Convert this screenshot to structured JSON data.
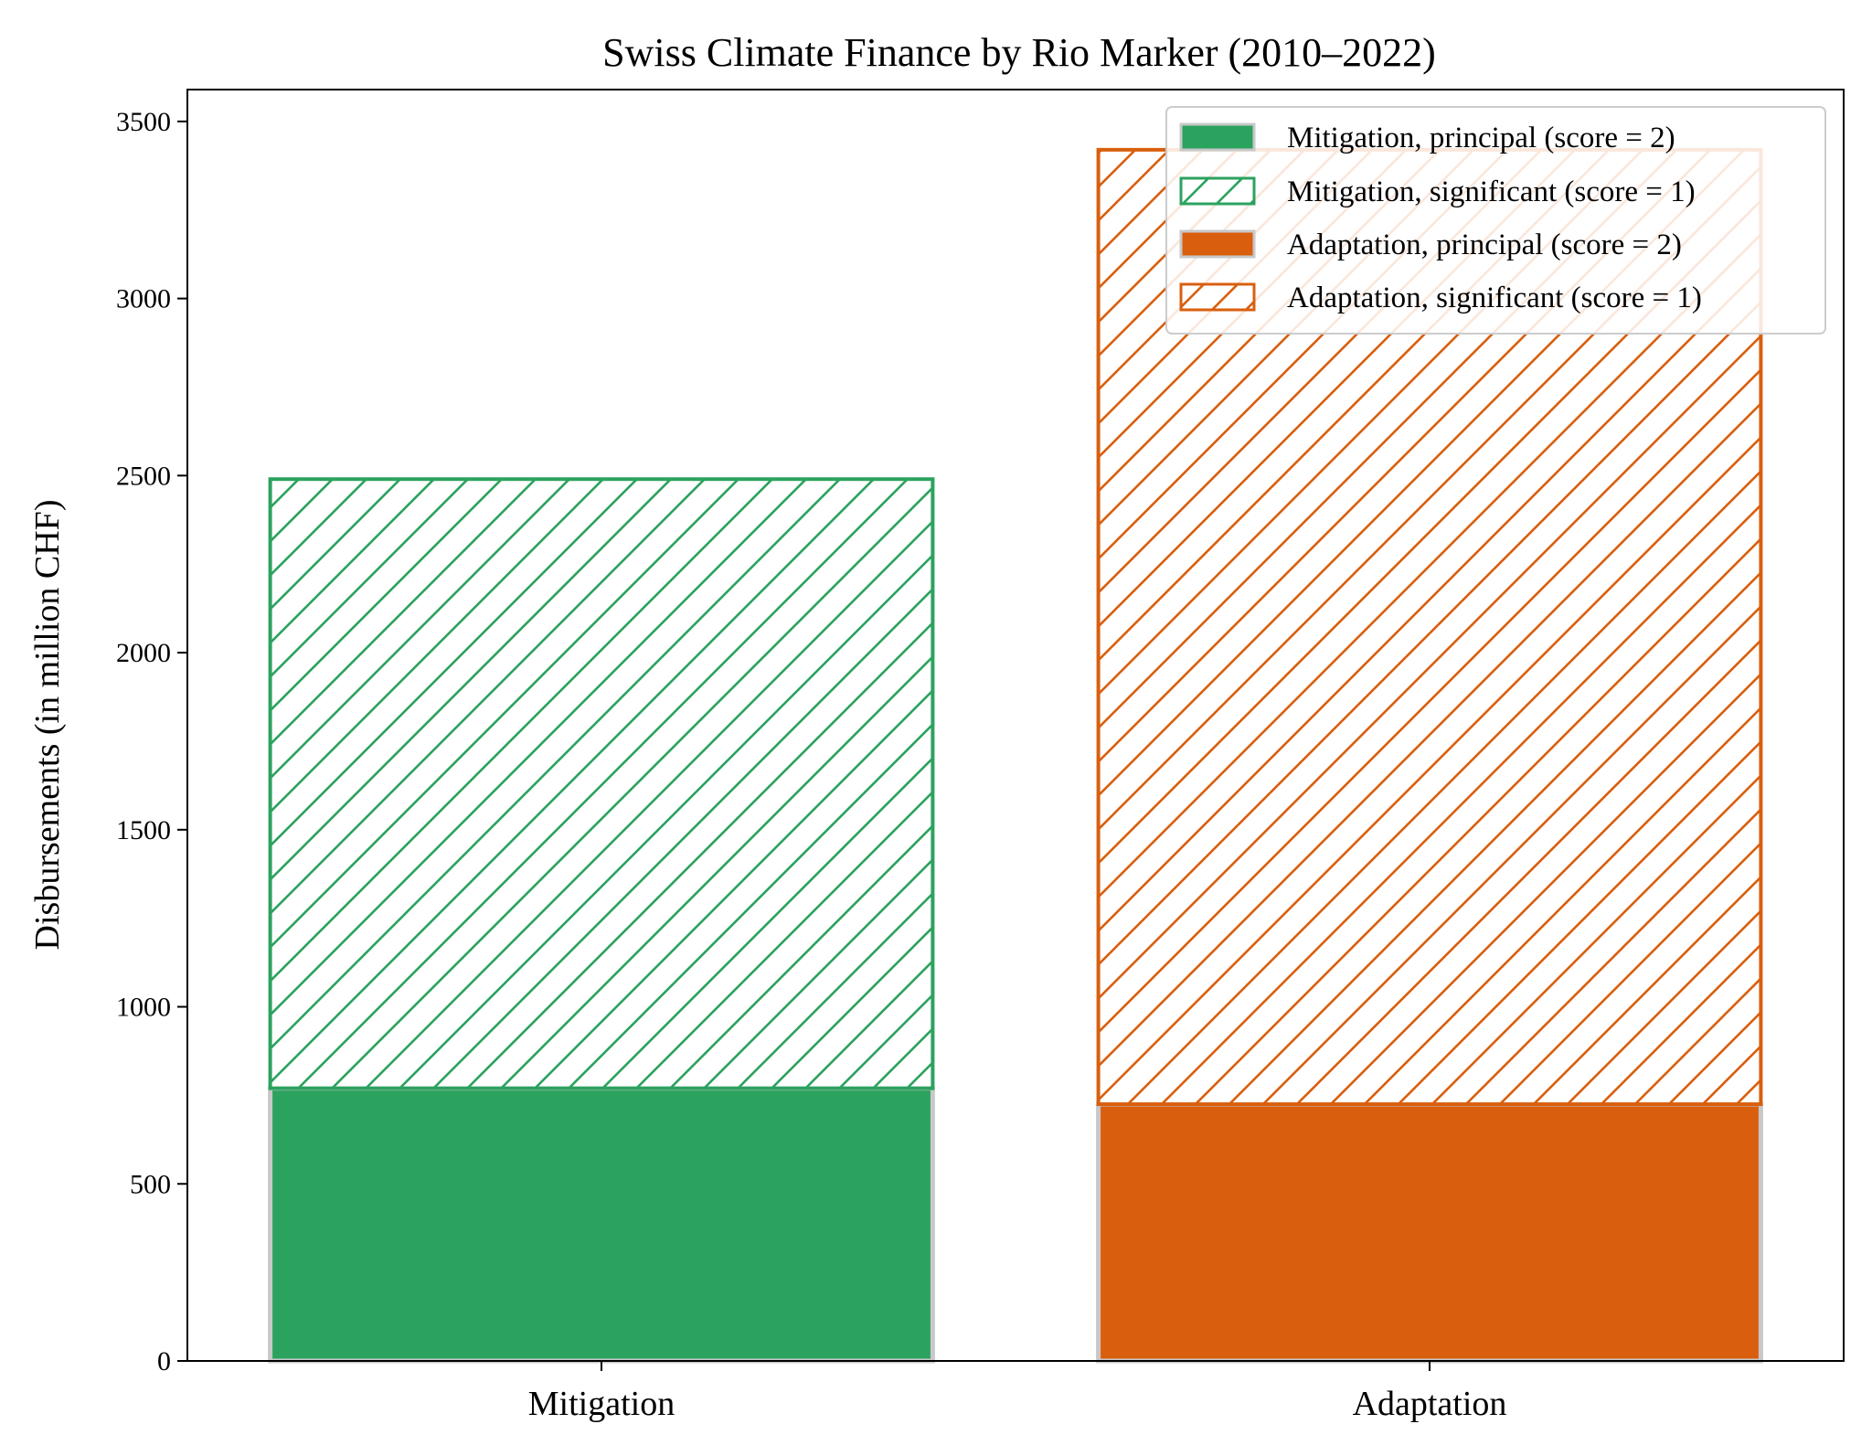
{
  "chart_data": {
    "type": "bar",
    "stacked": true,
    "title": "Swiss Climate Finance by Rio Marker (2010–2022)",
    "xlabel": "",
    "ylabel": "Disbursements (in million CHF)",
    "categories": [
      "Mitigation",
      "Adaptation"
    ],
    "ylim": [
      0,
      3590
    ],
    "yticks": [
      0,
      500,
      1000,
      1500,
      2000,
      2500,
      3000,
      3500
    ],
    "ytick_labels": [
      "0",
      "500",
      "1000",
      "1500",
      "2000",
      "2500",
      "3000",
      "3500"
    ],
    "series": [
      {
        "name": "Mitigation, principal (score = 2)",
        "category": "Mitigation",
        "base": 0,
        "value": 770,
        "style": "solid",
        "color": "#2ca25f"
      },
      {
        "name": "Mitigation, significant (score = 1)",
        "category": "Mitigation",
        "base": 770,
        "value": 1720,
        "style": "hatched",
        "color": "#2ca25f"
      },
      {
        "name": "Adaptation, principal (score = 2)",
        "category": "Adaptation",
        "base": 0,
        "value": 725,
        "style": "solid",
        "color": "#d95f0e"
      },
      {
        "name": "Adaptation, significant (score = 1)",
        "category": "Adaptation",
        "base": 725,
        "value": 2695,
        "style": "hatched",
        "color": "#d95f0e"
      }
    ],
    "legend_position": "upper right",
    "grid": false
  },
  "colors": {
    "mitigation": "#2ca25f",
    "adaptation": "#d95f0e",
    "bar_edge_grey": "#c8c8c8"
  }
}
